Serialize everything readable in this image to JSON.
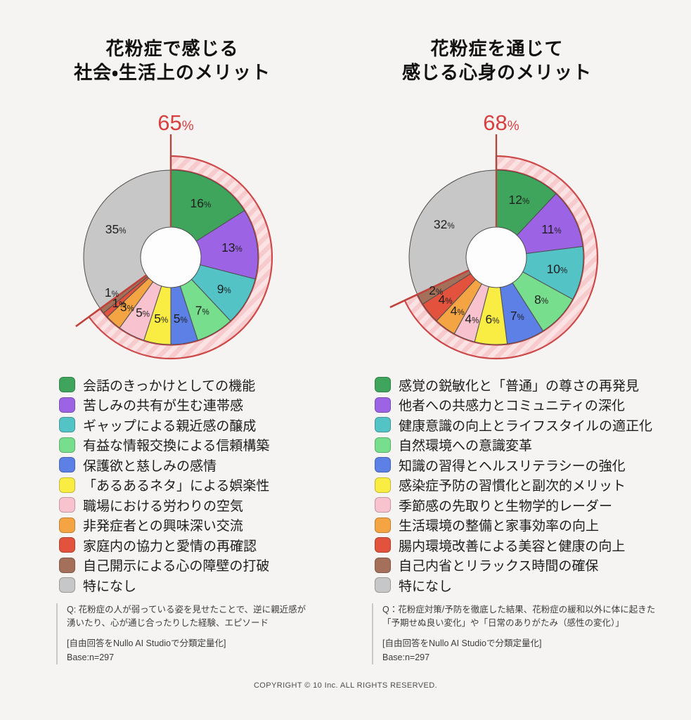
{
  "page": {
    "background": "#f5f4f2",
    "copyright": "COPYRIGHT © 10 Inc. ALL RIGHTS RESERVED."
  },
  "chart_data": [
    {
      "type": "donut",
      "title_lines": [
        "花粉症で感じる",
        "社会・生活上のメリット"
      ],
      "title": "花粉症で感じる 社会・生活上のメリット",
      "unit": "%",
      "highlight_pct": 65,
      "highlight_color": "#D84040",
      "legend_position": "bottom",
      "categories": [
        "会話のきっかけとしての機能",
        "苦しみの共有が生む連帯感",
        "ギャップによる親近感の醸成",
        "有益な情報交換による信頼構築",
        "保護欲と慈しみの感情",
        "「あるあるネタ」による娯楽性",
        "職場における労わりの空気",
        "非発症者との興味深い交流",
        "家庭内の協力と愛情の再確認",
        "自己開示による心の障壁の打破",
        "特になし"
      ],
      "values": [
        16,
        13,
        9,
        7,
        5,
        5,
        5,
        3,
        1,
        1,
        35
      ],
      "colors": [
        "#3FA55C",
        "#9C64E4",
        "#53C3C6",
        "#76DE8D",
        "#5C80E6",
        "#F9ED44",
        "#F9C2CF",
        "#F4A443",
        "#E2523D",
        "#A4705A",
        "#C7C7C7"
      ],
      "footer": {
        "question": "Q: 花粉症の人が弱っている姿を見せたことで、逆に親近感が\n湧いたり、心が通じ合ったりした経験、エピソード",
        "method": "[自由回答をNullo AI Studioで分類定量化]",
        "base": "Base:n=297"
      }
    },
    {
      "type": "donut",
      "title_lines": [
        "花粉症を通じて",
        "感じる心身のメリット"
      ],
      "title": "花粉症を通じて 感じる心身のメリット",
      "unit": "%",
      "highlight_pct": 68,
      "highlight_color": "#D84040",
      "legend_position": "bottom",
      "categories": [
        "感覚の鋭敏化と「普通」の尊さの再発見",
        "他者への共感力とコミュニティの深化",
        "健康意識の向上とライフスタイルの適正化",
        "自然環境への意識変革",
        "知識の習得とヘルスリテラシーの強化",
        "感染症予防の習慣化と副次的メリット",
        "季節感の先取りと生物学的レーダー",
        "生活環境の整備と家事効率の向上",
        "腸内環境改善による美容と健康の向上",
        "自己内省とリラックス時間の確保",
        "特になし"
      ],
      "values": [
        12,
        11,
        10,
        8,
        7,
        6,
        4,
        4,
        4,
        2,
        32
      ],
      "colors": [
        "#3FA55C",
        "#9C64E4",
        "#53C3C6",
        "#76DE8D",
        "#5C80E6",
        "#F9ED44",
        "#F9C2CF",
        "#F4A443",
        "#E2523D",
        "#A4705A",
        "#C7C7C7"
      ],
      "footer": {
        "question": "Q：花粉症対策/予防を徹底した結果、花粉症の緩和以外に体に起きた\n「予期せぬ良い変化」や「日常のありがたみ（感性の変化）」",
        "method": "[自由回答をNullo AI Studioで分類定量化]",
        "base": "Base:n=297"
      }
    }
  ]
}
